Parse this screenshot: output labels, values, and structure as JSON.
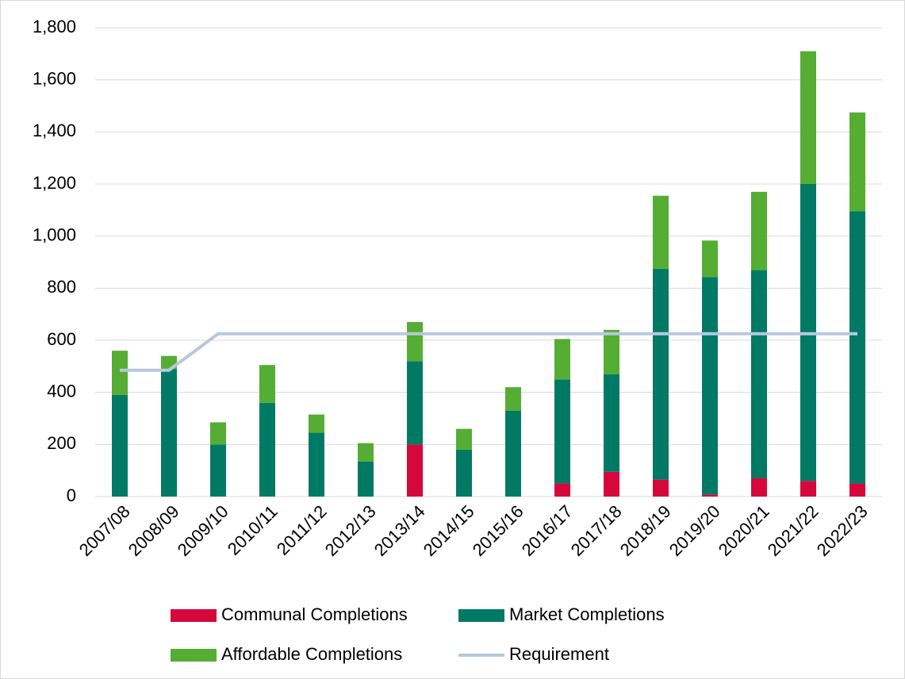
{
  "chart_data": {
    "type": "bar",
    "stacked": true,
    "categories": [
      "2007/08",
      "2008/09",
      "2009/10",
      "2010/11",
      "2011/12",
      "2012/13",
      "2013/14",
      "2014/15",
      "2015/16",
      "2016/17",
      "2017/18",
      "2018/19",
      "2019/20",
      "2020/21",
      "2021/22",
      "2022/23"
    ],
    "series": [
      {
        "name": "Communal Completions",
        "type": "bar",
        "color": "#d6083b",
        "values": [
          0,
          0,
          0,
          0,
          0,
          0,
          200,
          0,
          0,
          50,
          95,
          65,
          8,
          70,
          60,
          50
        ]
      },
      {
        "name": "Market Completions",
        "type": "bar",
        "color": "#007a64",
        "values": [
          390,
          490,
          200,
          360,
          245,
          135,
          320,
          180,
          330,
          400,
          375,
          810,
          835,
          800,
          1140,
          1045
        ]
      },
      {
        "name": "Affordable Completions",
        "type": "bar",
        "color": "#55ad34",
        "values": [
          170,
          50,
          85,
          145,
          70,
          70,
          150,
          80,
          90,
          155,
          170,
          280,
          140,
          300,
          510,
          380
        ]
      },
      {
        "name": "Requirement",
        "type": "line",
        "color": "#b7c9dc",
        "values": [
          485,
          485,
          625,
          625,
          625,
          625,
          625,
          625,
          625,
          625,
          625,
          625,
          625,
          625,
          625,
          625
        ]
      }
    ],
    "ylim": [
      0,
      1800
    ],
    "yticks": [
      0,
      200,
      400,
      600,
      800,
      {
        "value": 1000,
        "label": "1,000"
      },
      {
        "value": 1200,
        "label": "1,200"
      },
      {
        "value": 1400,
        "label": "1,400"
      },
      {
        "value": 1600,
        "label": "1,600"
      },
      {
        "value": 1800,
        "label": "1,800"
      }
    ],
    "grid": true,
    "legend": "bottom"
  }
}
